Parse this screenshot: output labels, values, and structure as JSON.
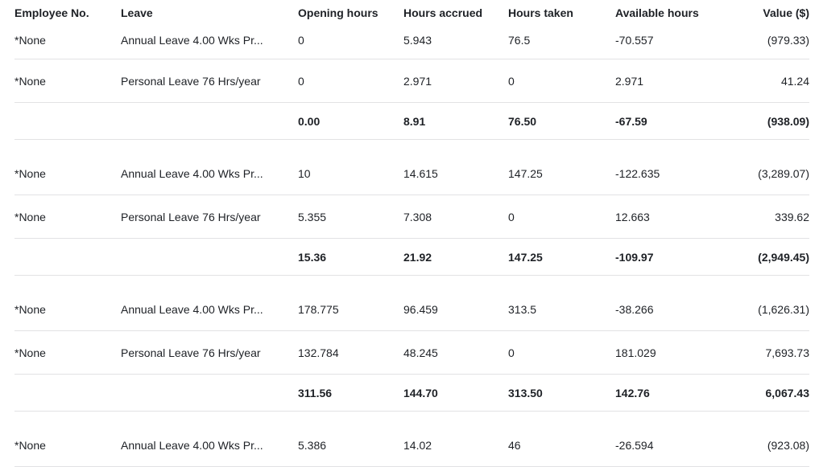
{
  "table": {
    "columns": [
      {
        "key": "employee_no",
        "label": "Employee No.",
        "align": "left"
      },
      {
        "key": "leave",
        "label": "Leave",
        "align": "left"
      },
      {
        "key": "opening_hours",
        "label": "Opening hours",
        "align": "left"
      },
      {
        "key": "hours_accrued",
        "label": "Hours accrued",
        "align": "left"
      },
      {
        "key": "hours_taken",
        "label": "Hours taken",
        "align": "left"
      },
      {
        "key": "available_hours",
        "label": "Available hours",
        "align": "left"
      },
      {
        "key": "value",
        "label": "Value ($)",
        "align": "right"
      }
    ],
    "groups": [
      {
        "rows": [
          {
            "employee_no": "*None",
            "leave": "Annual Leave 4.00 Wks Pr...",
            "opening_hours": "0",
            "hours_accrued": "5.943",
            "hours_taken": "76.5",
            "available_hours": "-70.557",
            "value": "(979.33)"
          },
          {
            "employee_no": "*None",
            "leave": "Personal Leave 76 Hrs/year",
            "opening_hours": "0",
            "hours_accrued": "2.971",
            "hours_taken": "0",
            "available_hours": "2.971",
            "value": "41.24"
          }
        ],
        "subtotal": {
          "employee_no": "",
          "leave": "",
          "opening_hours": "0.00",
          "hours_accrued": "8.91",
          "hours_taken": "76.50",
          "available_hours": "-67.59",
          "value": "(938.09)"
        }
      },
      {
        "rows": [
          {
            "employee_no": "*None",
            "leave": "Annual Leave 4.00 Wks Pr...",
            "opening_hours": "10",
            "hours_accrued": "14.615",
            "hours_taken": "147.25",
            "available_hours": "-122.635",
            "value": "(3,289.07)"
          },
          {
            "employee_no": "*None",
            "leave": "Personal Leave 76 Hrs/year",
            "opening_hours": "5.355",
            "hours_accrued": "7.308",
            "hours_taken": "0",
            "available_hours": "12.663",
            "value": "339.62"
          }
        ],
        "subtotal": {
          "employee_no": "",
          "leave": "",
          "opening_hours": "15.36",
          "hours_accrued": "21.92",
          "hours_taken": "147.25",
          "available_hours": "-109.97",
          "value": "(2,949.45)"
        }
      },
      {
        "rows": [
          {
            "employee_no": "*None",
            "leave": "Annual Leave 4.00 Wks Pr...",
            "opening_hours": "178.775",
            "hours_accrued": "96.459",
            "hours_taken": "313.5",
            "available_hours": "-38.266",
            "value": "(1,626.31)"
          },
          {
            "employee_no": "*None",
            "leave": "Personal Leave 76 Hrs/year",
            "opening_hours": "132.784",
            "hours_accrued": "48.245",
            "hours_taken": "0",
            "available_hours": "181.029",
            "value": "7,693.73"
          }
        ],
        "subtotal": {
          "employee_no": "",
          "leave": "",
          "opening_hours": "311.56",
          "hours_accrued": "144.70",
          "hours_taken": "313.50",
          "available_hours": "142.76",
          "value": "6,067.43"
        }
      },
      {
        "rows": [
          {
            "employee_no": "*None",
            "leave": "Annual Leave 4.00 Wks Pr...",
            "opening_hours": "5.386",
            "hours_accrued": "14.02",
            "hours_taken": "46",
            "available_hours": "-26.594",
            "value": "(923.08)"
          }
        ],
        "subtotal": null
      }
    ]
  },
  "colors": {
    "text": "#1e2126",
    "divider": "#e2e2e4",
    "background": "#ffffff"
  }
}
